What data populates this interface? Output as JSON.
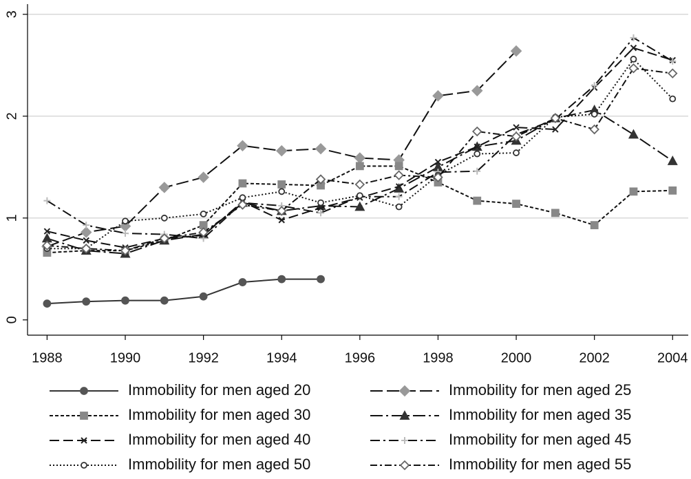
{
  "chart_data": {
    "type": "line",
    "x": [
      1988,
      1989,
      1990,
      1991,
      1992,
      1993,
      1994,
      1995,
      1996,
      1997,
      1998,
      1999,
      2000,
      2001,
      2002,
      2003,
      2004
    ],
    "xlim": [
      1987.5,
      2004.4
    ],
    "xticks": [
      1988,
      1990,
      1992,
      1994,
      1996,
      1998,
      2000,
      2002,
      2004
    ],
    "ylim": [
      -0.15,
      3.1
    ],
    "yticks": [
      0,
      1,
      2,
      3
    ],
    "grid": true,
    "series": [
      {
        "name": "Immobility for men aged 20",
        "color": "#333333",
        "marker_color": "#555555",
        "marker": "circle",
        "dash": "none",
        "values": [
          0.16,
          0.18,
          0.19,
          0.19,
          0.23,
          0.37,
          0.4,
          0.4,
          null,
          null,
          null,
          null,
          null,
          null,
          null,
          null,
          null
        ]
      },
      {
        "name": "Immobility for men aged 25",
        "color": "#111111",
        "marker_color": "#999999",
        "marker": "diamond",
        "dash": "18 6",
        "values": [
          0.72,
          0.86,
          0.92,
          1.3,
          1.4,
          1.71,
          1.66,
          1.68,
          1.59,
          1.57,
          2.2,
          2.25,
          2.64,
          null,
          null,
          null,
          null
        ]
      },
      {
        "name": "Immobility for men aged 30",
        "color": "#111111",
        "marker_color": "#888888",
        "marker": "square",
        "dash": "5 3",
        "values": [
          0.66,
          0.68,
          0.68,
          0.78,
          0.93,
          1.34,
          1.33,
          1.32,
          1.51,
          1.51,
          1.35,
          1.17,
          1.14,
          1.05,
          0.93,
          1.26,
          1.27
        ]
      },
      {
        "name": "Immobility for men aged 35",
        "color": "#111111",
        "marker_color": "#333333",
        "marker": "triangle",
        "dash": "18 5 3 5",
        "values": [
          0.8,
          0.68,
          0.65,
          0.78,
          0.84,
          1.15,
          1.07,
          1.12,
          1.11,
          1.29,
          1.5,
          1.7,
          1.76,
          1.98,
          2.06,
          1.82,
          1.56
        ]
      },
      {
        "name": "Immobility for men aged 40",
        "color": "#111111",
        "marker_color": "#222222",
        "marker": "x",
        "dash": "14 6",
        "values": [
          0.87,
          0.78,
          0.71,
          0.8,
          0.83,
          1.16,
          0.98,
          1.1,
          1.2,
          1.31,
          1.55,
          1.7,
          1.89,
          1.87,
          2.28,
          2.67,
          2.55
        ]
      },
      {
        "name": "Immobility for men aged 45",
        "color": "#111111",
        "marker_color": "#bbbbbb",
        "marker": "plus",
        "dash": "14 5 3 5",
        "values": [
          1.17,
          0.93,
          0.85,
          0.84,
          0.8,
          1.15,
          1.12,
          1.05,
          1.21,
          1.21,
          1.45,
          1.46,
          1.82,
          1.97,
          2.3,
          2.77,
          2.54
        ]
      },
      {
        "name": "Immobility for men aged 50",
        "color": "#111111",
        "marker_color": "#333333",
        "marker": "hollow-circle",
        "dash": "2 3",
        "values": [
          0.7,
          0.7,
          0.97,
          1.0,
          1.04,
          1.2,
          1.26,
          1.15,
          1.22,
          1.11,
          1.42,
          1.63,
          1.64,
          1.99,
          2.02,
          2.56,
          2.17
        ]
      },
      {
        "name": "Immobility for men aged 55",
        "color": "#111111",
        "marker_color": "#666666",
        "marker": "hollow-diamond",
        "dash": "10 4 3 4",
        "values": [
          0.73,
          0.7,
          0.68,
          0.8,
          0.86,
          1.13,
          1.07,
          1.38,
          1.33,
          1.42,
          1.4,
          1.85,
          1.8,
          1.98,
          1.87,
          2.47,
          2.42
        ]
      }
    ]
  }
}
